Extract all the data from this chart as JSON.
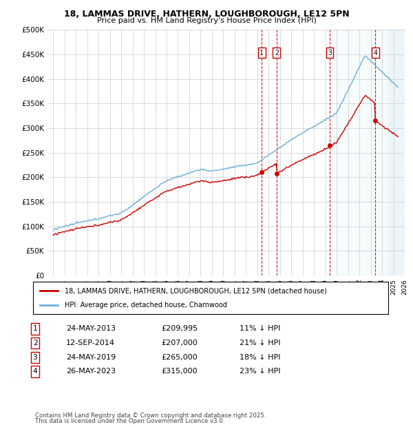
{
  "title_line1": "18, LAMMAS DRIVE, HATHERN, LOUGHBOROUGH, LE12 5PN",
  "title_line2": "Price paid vs. HM Land Registry's House Price Index (HPI)",
  "ylabel_ticks": [
    "£0",
    "£50K",
    "£100K",
    "£150K",
    "£200K",
    "£250K",
    "£300K",
    "£350K",
    "£400K",
    "£450K",
    "£500K"
  ],
  "ytick_vals": [
    0,
    50000,
    100000,
    150000,
    200000,
    250000,
    300000,
    350000,
    400000,
    450000,
    500000
  ],
  "hpi_color": "#6baed6",
  "price_color": "#cc0000",
  "vline_color": "#cc0000",
  "background_color": "#ffffff",
  "grid_color": "#cccccc",
  "legend_label_red": "18, LAMMAS DRIVE, HATHERN, LOUGHBOROUGH, LE12 5PN (detached house)",
  "legend_label_blue": "HPI: Average price, detached house, Charnwood",
  "transactions": [
    {
      "label": "1",
      "date": "24-MAY-2013",
      "price": 209995,
      "note": "11% ↓ HPI",
      "x_year": 2013.39
    },
    {
      "label": "2",
      "date": "12-SEP-2014",
      "price": 207000,
      "note": "21% ↓ HPI",
      "x_year": 2014.7
    },
    {
      "label": "3",
      "date": "24-MAY-2019",
      "price": 265000,
      "note": "18% ↓ HPI",
      "x_year": 2019.39
    },
    {
      "label": "4",
      "date": "26-MAY-2023",
      "price": 315000,
      "note": "23% ↓ HPI",
      "x_year": 2023.4
    }
  ],
  "table_rows": [
    [
      "1",
      "24-MAY-2013",
      "£209,995",
      "11% ↓ HPI"
    ],
    [
      "2",
      "12-SEP-2014",
      "£207,000",
      "21% ↓ HPI"
    ],
    [
      "3",
      "24-MAY-2019",
      "£265,000",
      "18% ↓ HPI"
    ],
    [
      "4",
      "26-MAY-2023",
      "£315,000",
      "23% ↓ HPI"
    ]
  ],
  "footer_line1": "Contains HM Land Registry data © Crown copyright and database right 2025.",
  "footer_line2": "This data is licensed under the Open Government Licence v3.0.",
  "xlim": [
    1994.5,
    2026.0
  ],
  "ylim": [
    0,
    500000
  ],
  "shade_start": 2019.5,
  "shade_end": 2026.0
}
